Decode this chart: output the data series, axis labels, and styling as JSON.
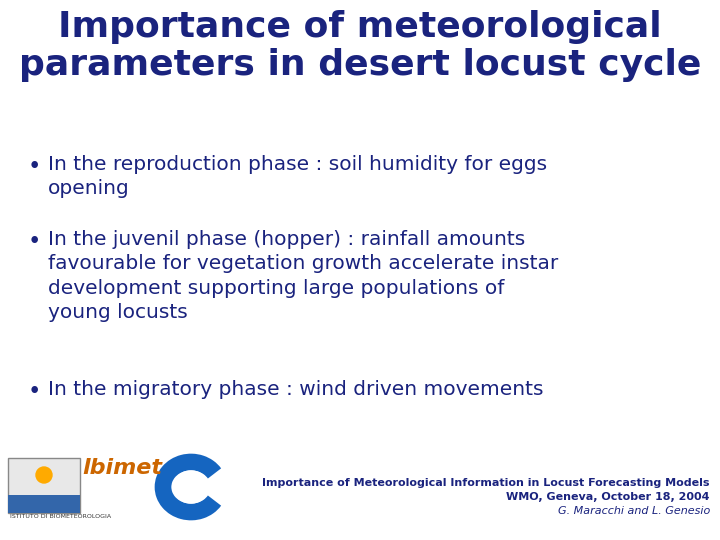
{
  "title_line1": "Importance of meteorological",
  "title_line2": "parameters in desert locust cycle",
  "title_color": "#1a237e",
  "background_color": "#ffffff",
  "bullet_points": [
    "In the reproduction phase : soil humidity for eggs\nopening",
    "In the juvenil phase (hopper) : rainfall amounts\nfavourable for vegetation growth accelerate instar\ndevelopment supporting large populations of\nyoung locusts",
    "In the migratory phase : wind driven movements"
  ],
  "bullet_color": "#1a237e",
  "bullet_fontsize": 14.5,
  "title_fontsize": 26,
  "footer_line1": "Importance of Meteorological Information in Locust Forecasting Models",
  "footer_line2": "WMO, Geneva, October 18, 2004",
  "footer_line3": "G. Maracchi and L. Genesio",
  "footer_color": "#1a237e",
  "footer_fontsize": 8.0,
  "footer_italic_fontsize": 8.0,
  "lbimet_color": "#cc6600",
  "logo_blue": "#1565c0"
}
